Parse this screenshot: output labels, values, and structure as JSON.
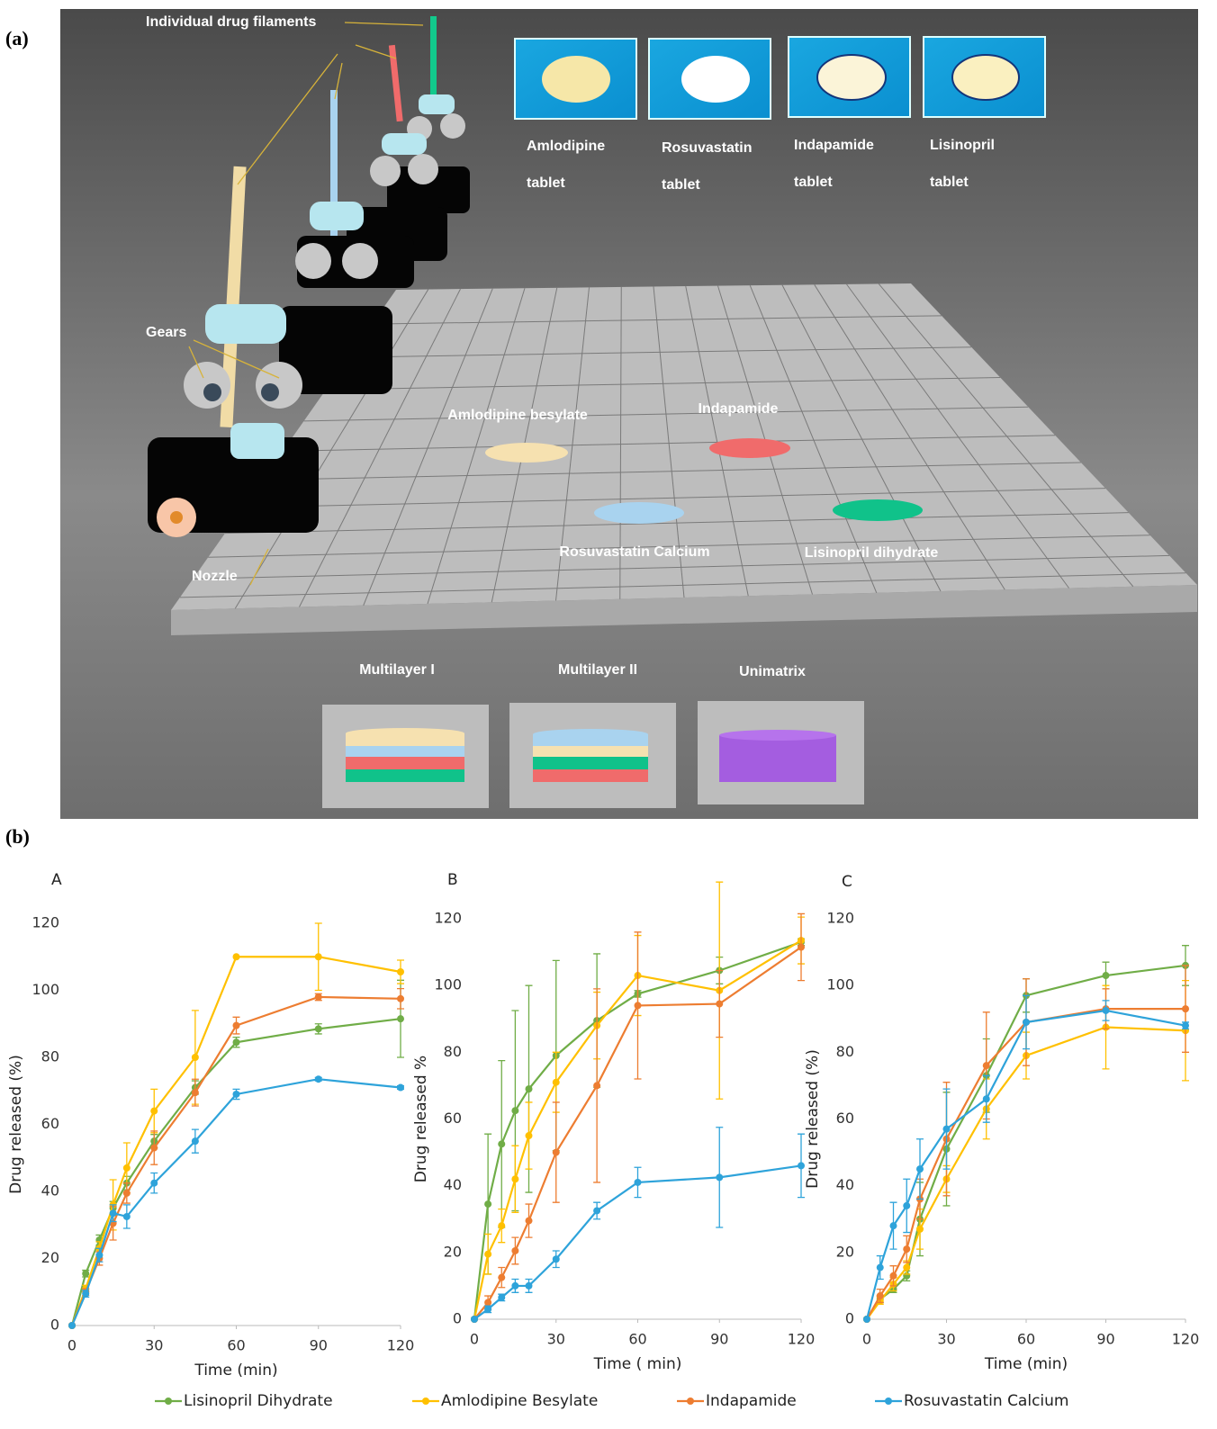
{
  "panel_a": {
    "label": "(a)",
    "filaments": "Individual drug filaments",
    "gears": "Gears",
    "nozzle": "Nozzle",
    "tablets": [
      [
        "Amlodipine",
        "tablet"
      ],
      [
        "Rosuvastatin",
        "tablet"
      ],
      [
        "Indapamide",
        "tablet"
      ],
      [
        "Lisinopril",
        "tablet"
      ]
    ],
    "discs": [
      "Amlodipine besylate",
      "Indapamide",
      "Rosuvastatin Calcium",
      "Lisinopril dihydrate"
    ],
    "designs": [
      "Multilayer I",
      "Multilayer II",
      "Unimatrix"
    ]
  },
  "panel_b": {
    "label": "(b)"
  },
  "chart_data": [
    {
      "type": "line",
      "title": "A",
      "x_label": "Time (min)",
      "y_label": "Drug released (%)",
      "x": [
        0,
        5,
        10,
        15,
        20,
        30,
        45,
        60,
        90,
        120
      ],
      "xlim": [
        0,
        120
      ],
      "xticks": [
        0,
        30,
        60,
        90,
        120
      ],
      "ylim": [
        0,
        120
      ],
      "yticks": [
        0,
        20,
        40,
        60,
        80,
        100,
        120
      ],
      "series": [
        {
          "name": "Lisinopril Dihydrate",
          "color": "#70ad47",
          "values": [
            0,
            15.5,
            25.5,
            35,
            42.5,
            55,
            71,
            84.5,
            88.5,
            91.5
          ],
          "errors": [
            0,
            1,
            1.5,
            2,
            2,
            2,
            2,
            1.5,
            1.5,
            11.5
          ]
        },
        {
          "name": "Amlodipine Besylate",
          "color": "#ffc000",
          "values": [
            0,
            11,
            23,
            36,
            47,
            64,
            80,
            110,
            110,
            105.5
          ],
          "errors": [
            0,
            1,
            2,
            7.5,
            7.5,
            6.5,
            14,
            0,
            10,
            3.5
          ]
        },
        {
          "name": "Indapamide",
          "color": "#ed7d31",
          "values": [
            0,
            10,
            20,
            30.5,
            39.5,
            53,
            69.5,
            89.5,
            98,
            97.5
          ],
          "errors": [
            0,
            1,
            2,
            5,
            3,
            5,
            4,
            2.5,
            1,
            3
          ]
        },
        {
          "name": "Rosuvastatin Calcium",
          "color": "#2ea3da",
          "values": [
            0,
            9.5,
            21,
            33.5,
            32.5,
            42.5,
            55,
            69,
            73.5,
            71
          ],
          "errors": [
            0,
            1,
            2,
            2.5,
            3.5,
            3,
            3.5,
            1.5,
            0.5,
            0.5
          ]
        }
      ]
    },
    {
      "type": "line",
      "title": "B",
      "x_label": "Time ( min)",
      "y_label": "Drug released %",
      "x": [
        0,
        5,
        10,
        15,
        20,
        30,
        45,
        60,
        90,
        120
      ],
      "xlim": [
        0,
        120
      ],
      "xticks": [
        0,
        30,
        60,
        90,
        120
      ],
      "ylim": [
        0,
        120
      ],
      "yticks": [
        0,
        20,
        40,
        60,
        80,
        100,
        120
      ],
      "series": [
        {
          "name": "Lisinopril Dihydrate",
          "color": "#70ad47",
          "values": [
            0,
            34.5,
            52.5,
            62.5,
            69,
            79,
            89.5,
            97.5,
            104.5,
            113
          ],
          "errors": [
            0,
            21,
            25,
            30,
            31,
            28.5,
            20,
            1,
            4,
            1
          ]
        },
        {
          "name": "Amlodipine Besylate",
          "color": "#ffc000",
          "values": [
            0,
            19.5,
            28,
            42,
            55,
            71,
            88,
            103,
            98.5,
            113.5
          ],
          "errors": [
            0,
            6,
            5,
            10,
            10,
            9,
            10,
            12,
            32.5,
            7
          ]
        },
        {
          "name": "Indapamide",
          "color": "#ed7d31",
          "values": [
            0,
            5,
            12.5,
            20.5,
            29.5,
            50,
            70,
            94,
            94.5,
            111.5
          ],
          "errors": [
            0,
            2,
            3,
            4,
            5,
            15,
            29,
            22,
            10,
            10
          ]
        },
        {
          "name": "Rosuvastatin Calcium",
          "color": "#2ea3da",
          "values": [
            0,
            3,
            6.5,
            10,
            10,
            18,
            32.5,
            41,
            42.5,
            46
          ],
          "errors": [
            0,
            1,
            1,
            2,
            2,
            2.5,
            2.5,
            4.5,
            15,
            9.5
          ]
        }
      ]
    },
    {
      "type": "line",
      "title": "C",
      "x_label": "Time (min)",
      "y_label": "Drug released (%)",
      "x": [
        0,
        5,
        10,
        15,
        20,
        30,
        45,
        60,
        90,
        120
      ],
      "xlim": [
        0,
        120
      ],
      "xticks": [
        0,
        30,
        60,
        90,
        120
      ],
      "ylim": [
        0,
        120
      ],
      "yticks": [
        0,
        20,
        40,
        60,
        80,
        100,
        120
      ],
      "series": [
        {
          "name": "Lisinopril Dihydrate",
          "color": "#70ad47",
          "values": [
            0,
            6,
            9,
            13,
            30,
            51,
            73,
            97,
            103,
            106
          ],
          "errors": [
            0,
            1,
            1,
            1.5,
            11,
            17,
            11,
            5,
            4,
            6
          ]
        },
        {
          "name": "Amlodipine Besylate",
          "color": "#ffc000",
          "values": [
            0,
            5.5,
            10.5,
            15.5,
            27,
            42,
            63,
            79,
            87.5,
            86.5
          ],
          "errors": [
            0,
            1,
            2,
            2,
            6,
            4,
            9,
            7,
            12.5,
            15
          ]
        },
        {
          "name": "Indapamide",
          "color": "#ed7d31",
          "values": [
            0,
            7,
            13,
            21,
            36,
            54,
            76,
            89,
            93,
            93
          ],
          "errors": [
            0,
            2,
            3,
            4,
            6,
            17,
            16,
            13,
            6,
            13
          ]
        },
        {
          "name": "Rosuvastatin Calcium",
          "color": "#2ea3da",
          "values": [
            0,
            15.5,
            28,
            34,
            45,
            57,
            66,
            89,
            92.5,
            88
          ],
          "errors": [
            0,
            3.5,
            7,
            8,
            9,
            12,
            7,
            8,
            3,
            1
          ]
        }
      ]
    }
  ]
}
